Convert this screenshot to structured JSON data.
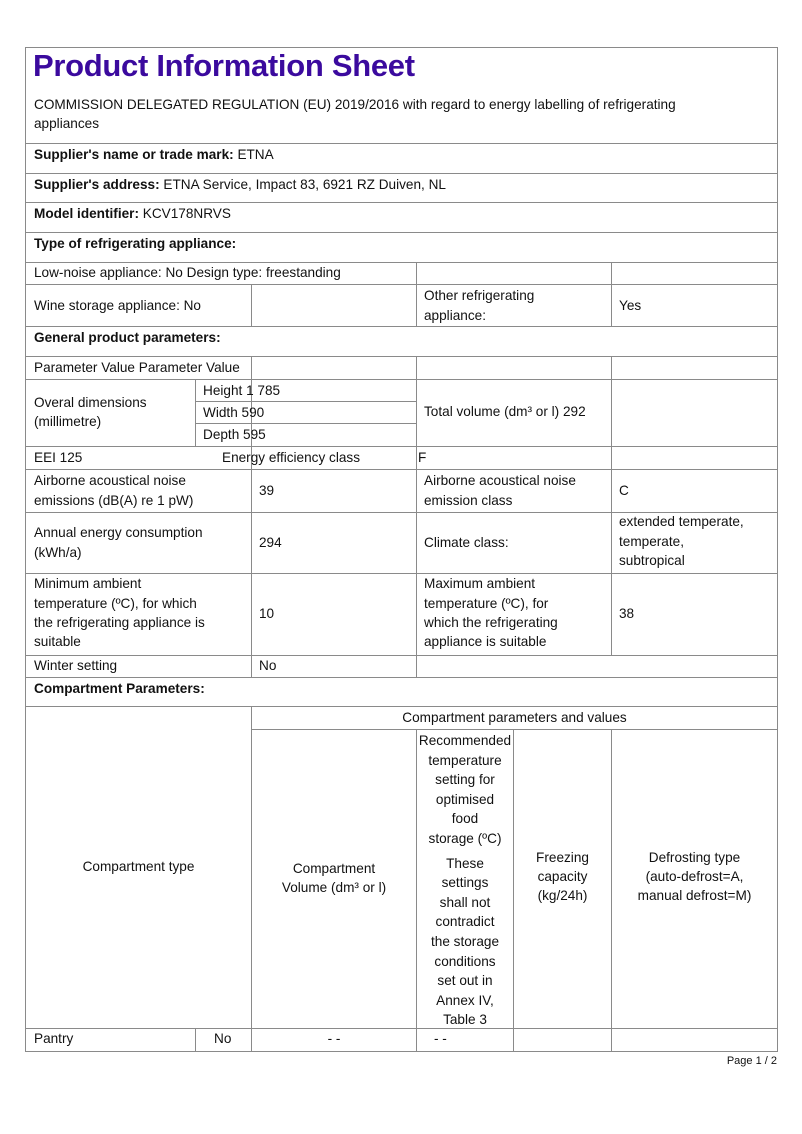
{
  "header": {
    "title": "Product Information Sheet",
    "regulation": "COMMISSION DELEGATED REGULATION (EU) 2019/2016 with regard to energy labelling of refrigerating",
    "regulation_cont": "appliances",
    "title_color": "#3b0a9e"
  },
  "supplier": {
    "name_label": "Supplier's name or trade mark:",
    "name": "ETNA",
    "address_label": "Supplier's address:",
    "address": "ETNA Service, Impact 83, 6921 RZ Duiven, NL"
  },
  "model": {
    "label": "Model identifier:",
    "value": "KCV178NRVS"
  },
  "type_heading": "Type of refrigerating appliance:",
  "appliance": {
    "low_noise": "Low-noise appliance: No Design type: freestanding",
    "wine": "Wine storage appliance: No",
    "other_label_1": "Other  refrigerating",
    "other_label_2": "appliance:",
    "other_value": "Yes"
  },
  "general_heading": "General product parameters:",
  "params": {
    "header_row": "Parameter Value Parameter Value",
    "dims_label_1": "Overal dimensions",
    "dims_label_2": "(millimetre)",
    "height": "Height 1 785",
    "width": "Width 590",
    "depth": "Depth 595",
    "total_volume": "Total volume (dm³ or l) 292",
    "eei": "EEI 125",
    "eec_label": "Energy efficiency class",
    "eec_value": "F",
    "noise_label_1": "Airborne acoustical noise",
    "noise_label_2": "emissions (dB(A) re 1 pW)",
    "noise_value": "39",
    "noise_class_label_1": "Airborne acoustical noise",
    "noise_class_label_2": "emission class",
    "noise_class_value": "C",
    "energy_label_1": "Annual energy consumption",
    "energy_label_2": "(kWh/a)",
    "energy_value": "294",
    "climate_label": "Climate class:",
    "climate_1": "extended temperate,",
    "climate_2": "temperate,",
    "climate_3": "subtropical",
    "min_1": "Minimum ambient",
    "min_2": "temperature (ºC), for which",
    "min_3": "the refrigerating appliance is",
    "min_4": "suitable",
    "min_value": "10",
    "max_1": "Maximum ambient",
    "max_2": "temperature (ºC), for",
    "max_3": "which the refrigerating",
    "max_4": "appliance is suitable",
    "max_value": "38",
    "winter_label": "Winter setting",
    "winter_value": "No"
  },
  "compartment": {
    "heading": "Compartment Parameters:",
    "type_header": "Compartment type",
    "group_header": "Compartment parameters and values",
    "volume_1": "Compartment",
    "volume_2": "Volume (dm³ or l)",
    "rec": [
      "Recommended",
      "temperature",
      "setting for",
      "optimised",
      "food",
      "storage (ºC)"
    ],
    "note": [
      "These",
      "settings",
      "shall not",
      "contradict",
      "the storage",
      "conditions",
      "set out in",
      "Annex IV,",
      "Table 3"
    ],
    "freezing": [
      "Freezing",
      "capacity",
      "(kg/24h)"
    ],
    "defrost": [
      "Defrosting type",
      "(auto-defrost=A,",
      "manual defrost=M)"
    ],
    "rows": [
      {
        "type": "Pantry",
        "present": "No",
        "volume": "- -",
        "temp": "- -",
        "freezing": "",
        "defrost": ""
      }
    ]
  },
  "footer": {
    "page": "Page 1 / 2"
  }
}
